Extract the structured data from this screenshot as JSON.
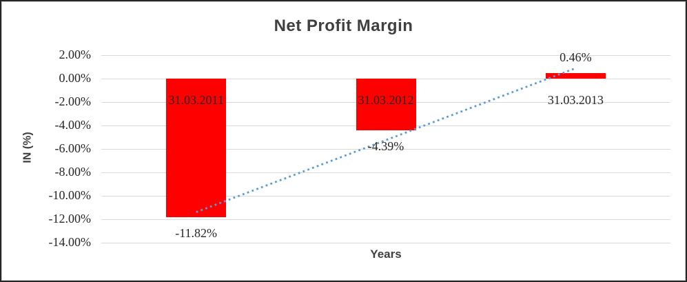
{
  "frame": {
    "background": "#ffffff",
    "border_color": "#262626",
    "inner_border_color": "#d5d5d5"
  },
  "chart_data": {
    "type": "bar",
    "title": "Net Profit Margin",
    "xlabel": "Years",
    "ylabel": "IN (%)",
    "categories": [
      "31.03.2011",
      "31.03.2012",
      "31.03.2013"
    ],
    "values": [
      -11.82,
      -4.39,
      0.46
    ],
    "data_labels": [
      "-11.82%",
      "-4.39%",
      "0.46%"
    ],
    "bar_color": "#ff0000",
    "ylim": [
      -14,
      2
    ],
    "ytick_values": [
      2,
      0,
      -2,
      -4,
      -6,
      -8,
      -10,
      -12,
      -14
    ],
    "ytick_labels": [
      "2.00%",
      "0.00%",
      "-2.00%",
      "-4.00%",
      "-6.00%",
      "-8.00%",
      "-10.00%",
      "-12.00%",
      "-14.00%"
    ],
    "grid": true,
    "gridline_color": "#d9d9d9",
    "legend": false,
    "text_color": "#262626",
    "title_color": "#404040",
    "axis_title_color": "#404040",
    "trendline": {
      "type": "linear",
      "style": "dotted",
      "color": "#5b9bd5"
    }
  }
}
